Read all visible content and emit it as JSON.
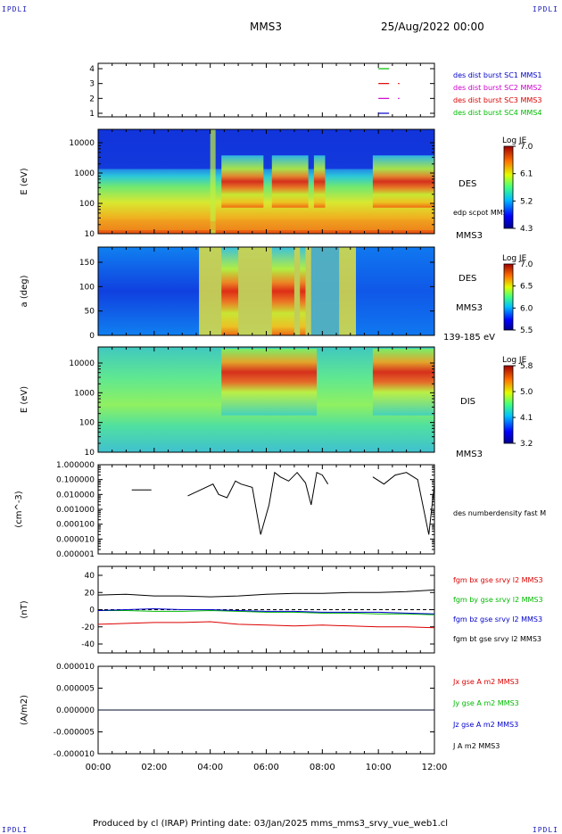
{
  "header": {
    "corner_label": "IPDLI",
    "spacecraft": "MMS3",
    "datetime": "25/Aug/2022 00:00"
  },
  "footer": {
    "text": "Produced by cl (IRAP)   Printing date: 03/Jan/2025   mms_mms3_srvy_vue_web1.cl"
  },
  "time_axis": {
    "range_hours": [
      0,
      12
    ],
    "tick_labels": [
      "00:00",
      "02:00",
      "04:00",
      "06:00",
      "08:00",
      "10:00",
      "12:00"
    ]
  },
  "chart_data": [
    {
      "type": "line",
      "panel": "burst",
      "ylim": [
        0.5,
        4.5
      ],
      "tick_labels": [
        "4",
        "3",
        "2",
        "1"
      ],
      "series": [
        {
          "name": "des dist burst SC1 MMS1",
          "color": "#0000cc",
          "level": 1,
          "segments": [
            [
              10.0,
              10.35
            ]
          ]
        },
        {
          "name": "des dist burst SC2 MMS2",
          "color": "#cc00cc",
          "level": 2,
          "segments": [
            [
              10.0,
              10.35
            ],
            [
              10.7,
              10.72
            ]
          ]
        },
        {
          "name": "des dist burst SC3 MMS3",
          "color": "#dd0000",
          "level": 3,
          "segments": [
            [
              10.0,
              10.35
            ],
            [
              10.7,
              10.72
            ]
          ]
        },
        {
          "name": "des dist burst SC4 MMS4",
          "color": "#00bb00",
          "level": 4,
          "segments": [
            [
              10.0,
              10.35
            ]
          ]
        }
      ]
    },
    {
      "type": "heatmap",
      "panel": "des_energy",
      "ylabel": "E (eV)",
      "yscale": "log",
      "ylim": [
        10,
        30000
      ],
      "tick_labels": [
        "10000",
        "1000",
        "100",
        "10"
      ],
      "label": "DES",
      "sublabel": "MMS3",
      "annotation": "edp scpot MMS3",
      "colorbar": {
        "title": "Log JE",
        "ticks": [
          "7.0",
          "6.1",
          "5.2",
          "4.3"
        ]
      },
      "hot_intervals": [
        [
          4.4,
          5.9
        ],
        [
          6.2,
          7.5
        ],
        [
          7.7,
          8.1
        ],
        [
          9.8,
          12.0
        ]
      ]
    },
    {
      "type": "heatmap",
      "panel": "des_pitch",
      "ylabel": "a (deg)",
      "ylim": [
        0,
        180
      ],
      "tick_labels": [
        "150",
        "100",
        "50",
        "0"
      ],
      "label": "DES",
      "sublabel": "MMS3",
      "energy_range": "139-185 eV",
      "colorbar": {
        "title": "Log JE",
        "ticks": [
          "7.0",
          "6.5",
          "6.0",
          "5.5"
        ]
      },
      "hot_intervals": [
        [
          4.4,
          5.0
        ],
        [
          6.2,
          7.0
        ],
        [
          7.2,
          7.4
        ]
      ]
    },
    {
      "type": "heatmap",
      "panel": "dis_energy",
      "ylabel": "E (eV)",
      "yscale": "log",
      "ylim": [
        10,
        30000
      ],
      "tick_labels": [
        "10000",
        "1000",
        "100",
        "10"
      ],
      "label": "DIS",
      "sublabel": "MMS3",
      "colorbar": {
        "title": "Log JE",
        "ticks": [
          "5.8",
          "5.0",
          "4.1",
          "3.2"
        ]
      },
      "hot_intervals": [
        [
          4.4,
          7.8
        ],
        [
          9.8,
          12.0
        ]
      ]
    },
    {
      "type": "line",
      "panel": "density",
      "ylabel": "(cm^-3)",
      "yscale": "log",
      "ylim": [
        1e-06,
        1.0
      ],
      "tick_labels": [
        "1.000000",
        "0.100000",
        "0.010000",
        "0.001000",
        "0.000100",
        "0.000010",
        "0.000001"
      ],
      "series": [
        {
          "name": "des numberdensity fast M",
          "color": "#000000",
          "x": [
            1.2,
            1.9,
            3.2,
            4.1,
            4.3,
            4.6,
            4.9,
            5.1,
            5.5,
            5.8,
            6.1,
            6.3,
            6.5,
            6.8,
            7.1,
            7.4,
            7.6,
            7.8,
            8.0,
            8.2,
            9.8,
            10.2,
            10.6,
            11.0,
            11.4,
            11.8,
            12.0
          ],
          "y": [
            0.02,
            0.02,
            0.008,
            0.05,
            0.01,
            0.006,
            0.08,
            0.05,
            0.03,
            2e-05,
            0.002,
            0.3,
            0.15,
            0.08,
            0.3,
            0.06,
            0.002,
            0.3,
            0.2,
            0.05,
            0.15,
            0.05,
            0.2,
            0.3,
            0.1,
            2e-05,
            0.05
          ]
        }
      ]
    },
    {
      "type": "line",
      "panel": "magnetic_field",
      "ylabel": "(nT)",
      "ylim": [
        -50,
        50
      ],
      "tick_labels": [
        "40",
        "20",
        "0",
        "-20",
        "-40"
      ],
      "x": [
        0,
        1,
        2,
        3,
        4,
        5,
        6,
        7,
        8,
        9,
        10,
        11,
        12
      ],
      "series": [
        {
          "name": "fgm bx gse srvy l2 MMS3",
          "color": "#dd0000",
          "values": [
            -17,
            -16,
            -15,
            -15,
            -14,
            -17,
            -18,
            -19,
            -18,
            -19,
            -20,
            -20,
            -21
          ]
        },
        {
          "name": "fgm by gse srvy l2 MMS3",
          "color": "#00bb00",
          "values": [
            -1,
            -1,
            -2,
            -2,
            -1,
            -2,
            -3,
            -3,
            -4,
            -4,
            -5,
            -5,
            -6
          ]
        },
        {
          "name": "fgm bz gse srvy l2 MMS3",
          "color": "#0000cc",
          "values": [
            -1,
            0,
            1,
            0,
            0,
            -1,
            -2,
            -2,
            -3,
            -3,
            -3,
            -4,
            -5
          ]
        },
        {
          "name": "fgm bt gse srvy l2 MMS3",
          "color": "#000000",
          "values": [
            17,
            18,
            16,
            16,
            15,
            16,
            18,
            19,
            19,
            20,
            20,
            21,
            23
          ]
        }
      ]
    },
    {
      "type": "line",
      "panel": "current",
      "ylabel": "(A/m2)",
      "ylim": [
        -1e-05,
        1e-05
      ],
      "tick_labels": [
        "0.000010",
        "0.000005",
        "0.000000",
        "-0.000005",
        "-0.000010"
      ],
      "series": [
        {
          "name": "Jx gse A m2 MMS3",
          "color": "#dd0000"
        },
        {
          "name": "Jy gse A m2 MMS3",
          "color": "#00bb00"
        },
        {
          "name": "Jz gse A m2 MMS3",
          "color": "#0000cc"
        },
        {
          "name": "J A m2 MMS3",
          "color": "#000000"
        }
      ]
    }
  ]
}
